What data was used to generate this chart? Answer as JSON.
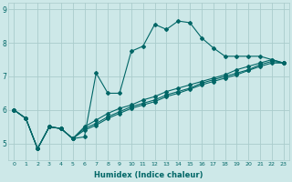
{
  "xlabel": "Humidex (Indice chaleur)",
  "bg_color": "#cde8e8",
  "grid_color": "#aacccc",
  "line_color": "#006666",
  "xlim": [
    -0.5,
    23.5
  ],
  "ylim": [
    4.5,
    9.2
  ],
  "yticks": [
    5,
    6,
    7,
    8,
    9
  ],
  "xticks": [
    0,
    1,
    2,
    3,
    4,
    5,
    6,
    7,
    8,
    9,
    10,
    11,
    12,
    13,
    14,
    15,
    16,
    17,
    18,
    19,
    20,
    21,
    22,
    23
  ],
  "series": [
    [
      6.0,
      5.75,
      4.85,
      5.5,
      5.45,
      5.15,
      5.2,
      7.1,
      6.5,
      6.5,
      7.75,
      7.9,
      8.55,
      8.4,
      8.65,
      8.6,
      8.15,
      7.85,
      7.6,
      7.6,
      7.6,
      7.6,
      7.5,
      7.4
    ],
    [
      6.0,
      5.75,
      4.85,
      5.5,
      5.45,
      5.15,
      5.5,
      5.7,
      5.9,
      6.05,
      6.15,
      6.3,
      6.4,
      6.55,
      6.65,
      6.75,
      6.85,
      6.95,
      7.05,
      7.2,
      7.3,
      7.4,
      7.5,
      7.4
    ],
    [
      6.0,
      5.75,
      4.85,
      5.5,
      5.45,
      5.15,
      5.45,
      5.6,
      5.8,
      5.95,
      6.1,
      6.2,
      6.3,
      6.45,
      6.55,
      6.65,
      6.8,
      6.9,
      7.0,
      7.1,
      7.2,
      7.35,
      7.45,
      7.4
    ],
    [
      6.0,
      5.75,
      4.85,
      5.5,
      5.45,
      5.15,
      5.4,
      5.55,
      5.75,
      5.9,
      6.05,
      6.15,
      6.25,
      6.4,
      6.5,
      6.62,
      6.75,
      6.85,
      6.95,
      7.05,
      7.18,
      7.3,
      7.4,
      7.4
    ]
  ]
}
